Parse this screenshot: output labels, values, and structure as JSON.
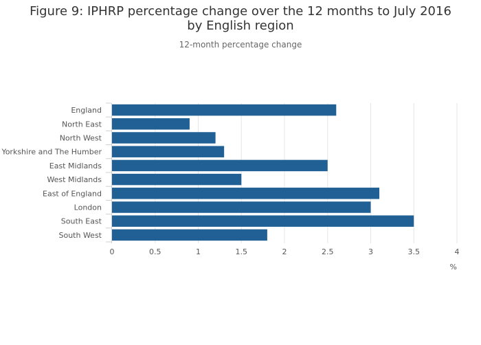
{
  "chart_data": {
    "type": "bar",
    "orientation": "horizontal",
    "title": "Figure 9: IPHRP percentage change over the 12 months to July 2016 by English region",
    "subtitle": "12-month percentage change",
    "xlabel": "%",
    "categories": [
      "England",
      "North East",
      "North West",
      "Yorkshire and The Humber",
      "East Midlands",
      "West Midlands",
      "East of England",
      "London",
      "South East",
      "South West"
    ],
    "values": [
      2.6,
      0.9,
      1.2,
      1.3,
      2.5,
      1.5,
      3.1,
      3.0,
      3.5,
      1.8
    ],
    "xlim": [
      0,
      4
    ],
    "xticks": [
      "0",
      "0.5",
      "1",
      "1.5",
      "2",
      "2.5",
      "3",
      "3.5",
      "4"
    ],
    "grid": true,
    "bar_color": "#206095"
  }
}
